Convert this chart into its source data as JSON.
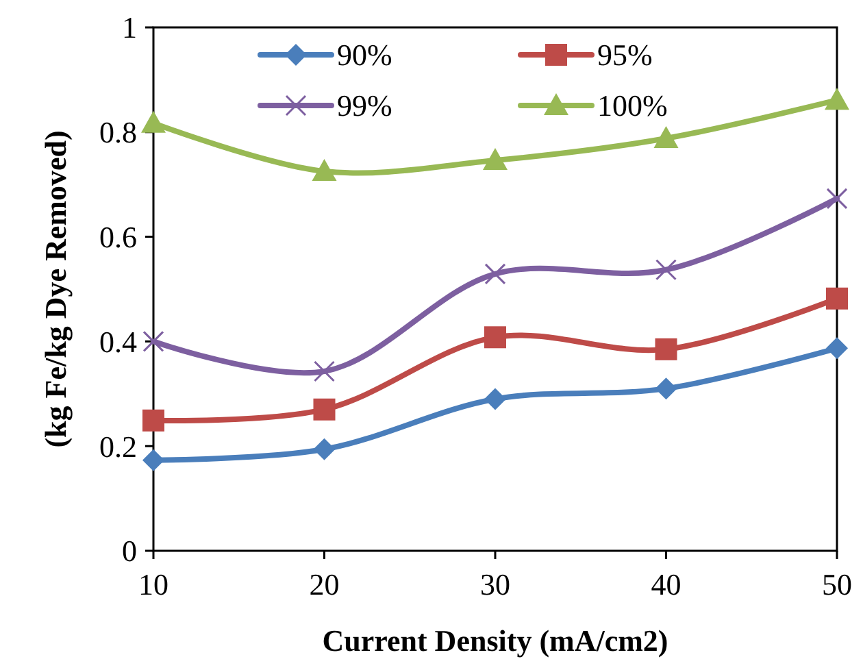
{
  "chart_data": {
    "type": "line",
    "xlabel": "Current Density (mA/cm2)",
    "ylabel": "(kg Fe/kg Dye Removed)",
    "x": [
      10,
      20,
      30,
      40,
      50
    ],
    "xlim": [
      10,
      50
    ],
    "xticks": [
      10,
      20,
      30,
      40,
      50
    ],
    "ylim": [
      0,
      1
    ],
    "yticks": [
      0,
      0.2,
      0.4,
      0.6,
      0.8,
      1
    ],
    "grid": false,
    "legend": "top",
    "series": [
      {
        "name": "90%",
        "color": "#4a7ebb",
        "marker": "diamond",
        "values": [
          0.173,
          0.194,
          0.29,
          0.31,
          0.387
        ]
      },
      {
        "name": "95%",
        "color": "#be4b48",
        "marker": "square",
        "values": [
          0.249,
          0.27,
          0.408,
          0.385,
          0.482
        ]
      },
      {
        "name": "99%",
        "color": "#7d5fa0",
        "marker": "cross",
        "values": [
          0.4,
          0.343,
          0.529,
          0.537,
          0.673
        ]
      },
      {
        "name": "100%",
        "color": "#98b954",
        "marker": "triangle",
        "values": [
          0.817,
          0.725,
          0.746,
          0.788,
          0.861
        ]
      }
    ]
  }
}
